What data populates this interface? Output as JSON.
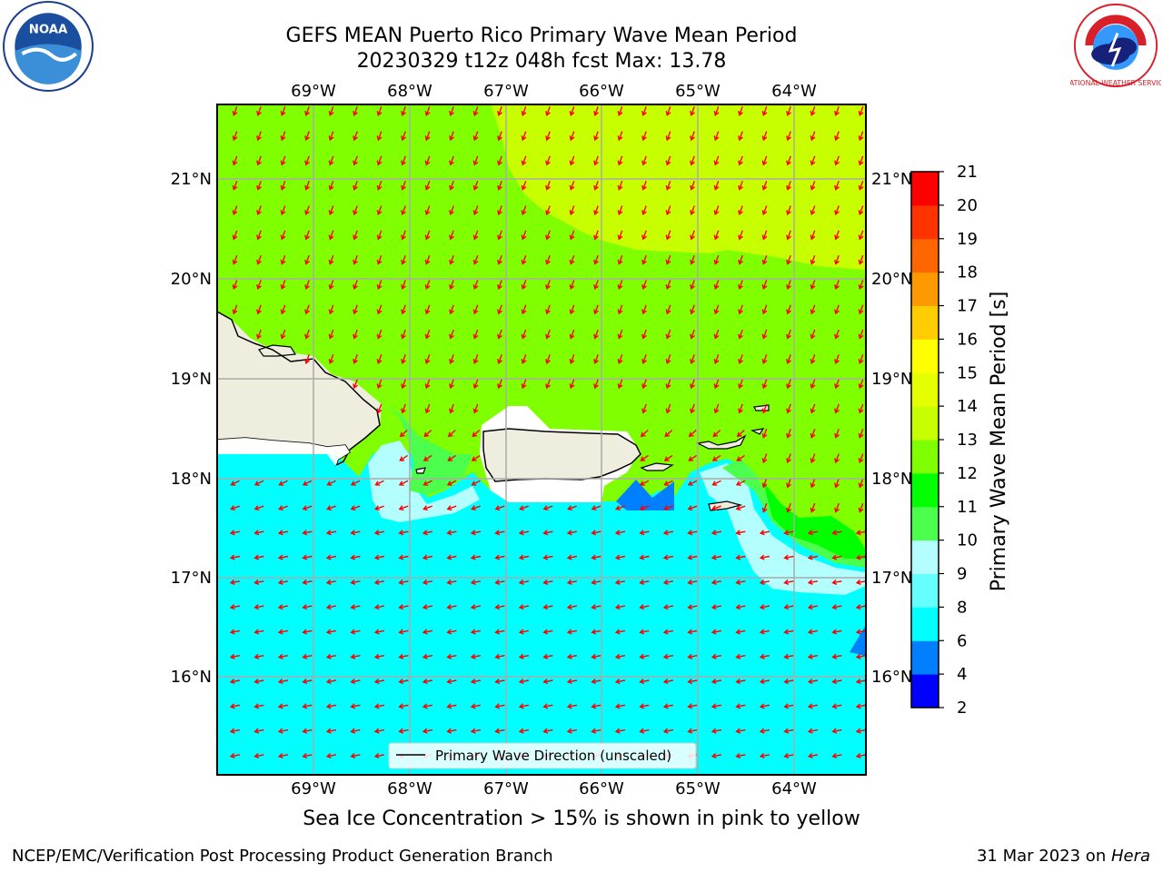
{
  "title_line1": "GEFS MEAN Puerto Rico Primary Wave Mean Period",
  "title_line2": "20230329 t12z 048h fcst   Max: 13.78",
  "logos": {
    "left": "noaa-logo",
    "right": "nws-logo",
    "left_text": "NOAA",
    "right_text": "NATIONAL WEATHER SERVICE"
  },
  "map": {
    "lon_labels": [
      "69°W",
      "68°W",
      "67°W",
      "66°W",
      "65°W",
      "64°W"
    ],
    "lat_labels": [
      "21°N",
      "20°N",
      "19°N",
      "18°N",
      "17°N",
      "16°N"
    ],
    "legend_label": "Primary Wave Direction (unscaled)",
    "colors": {
      "yellow_green": "#c8ff00",
      "green": "#80ff00",
      "cyan": "#00ffff",
      "land": "#efeddd",
      "arrow": "#ff0000",
      "grid": "#aaaaaa"
    }
  },
  "colorbar": {
    "label": "Primary Wave Mean Period [s]",
    "ticks": [
      "2",
      "4",
      "6",
      "8",
      "9",
      "10",
      "11",
      "12",
      "13",
      "14",
      "15",
      "16",
      "17",
      "18",
      "19",
      "20",
      "21"
    ],
    "colors": [
      "#0000ff",
      "#0080ff",
      "#00ffff",
      "#66ffff",
      "#b3ffff",
      "#4dff4d",
      "#00ff00",
      "#80ff00",
      "#c8ff00",
      "#e6ff00",
      "#ffff00",
      "#ffcc00",
      "#ff9900",
      "#ff6600",
      "#ff3300",
      "#ff0000"
    ]
  },
  "note": "Sea Ice Concentration > 15% is shown in pink to yellow",
  "footer_left": "NCEP/EMC/Verification Post Processing Product Generation Branch",
  "footer_date": "31 Mar 2023 on ",
  "footer_host": "Hera"
}
